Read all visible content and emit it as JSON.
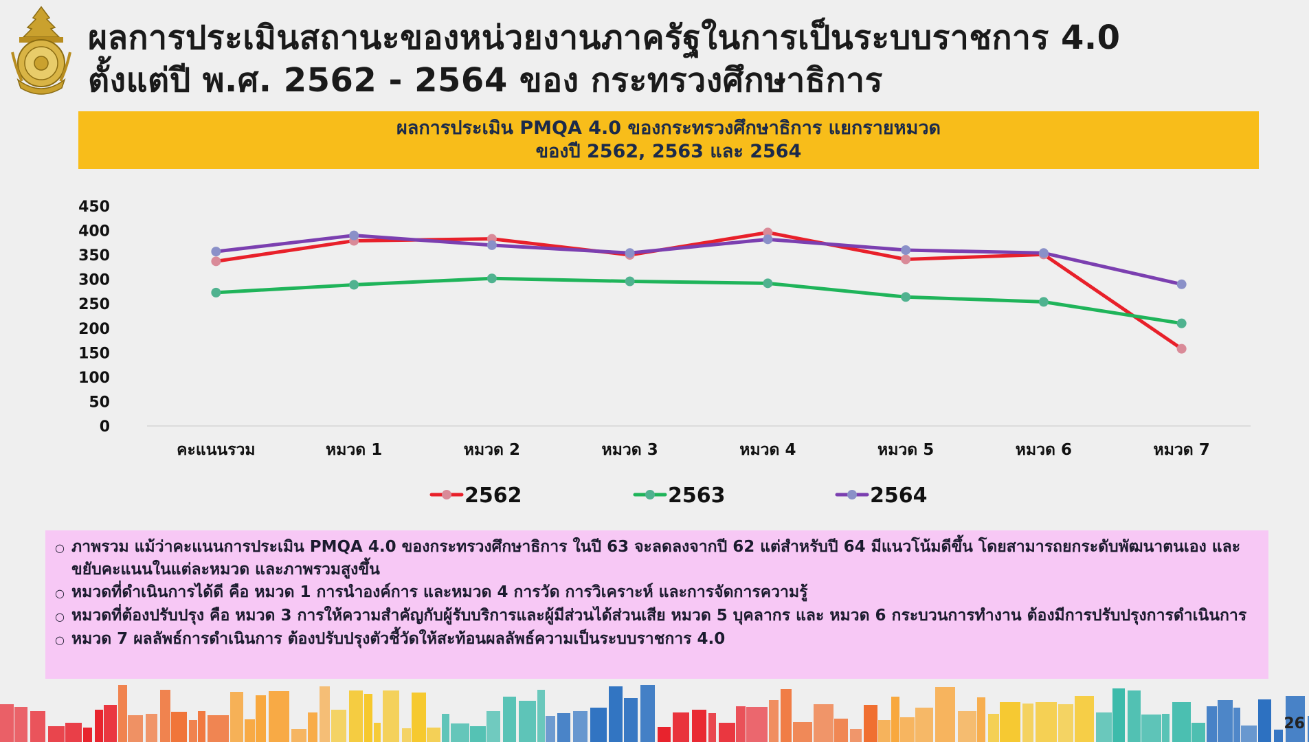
{
  "title": {
    "line1": "ผลการประเมินสถานะของหน่วยงานภาครัฐในการเป็นระบบราชการ 4.0",
    "line2": "ตั้งแต่ปี พ.ศ. 2562 - 2564 ของ กระทรวงศึกษาธิการ"
  },
  "banner": {
    "line1": "ผลการประเมิน PMQA 4.0 ของกระทรวงศึกษาธิการ แยกรายหมวด",
    "line2": "ของปี 2562, 2563 และ 2564"
  },
  "chart_data": {
    "type": "line",
    "categories": [
      "คะแนนรวม",
      "หมวด 1",
      "หมวด 2",
      "หมวด 3",
      "หมวด 4",
      "หมวด 5",
      "หมวด 6",
      "หมวด 7"
    ],
    "series": [
      {
        "name": "2562",
        "color": "#e8202a",
        "marker": "#d98a98",
        "values": [
          337,
          379,
          383,
          350,
          396,
          341,
          351,
          158
        ]
      },
      {
        "name": "2563",
        "color": "#1fb45a",
        "marker": "#4fb28f",
        "values": [
          273,
          289,
          302,
          296,
          292,
          264,
          254,
          210
        ]
      },
      {
        "name": "2564",
        "color": "#7b3fb0",
        "marker": "#8a90c8",
        "values": [
          357,
          390,
          370,
          354,
          382,
          360,
          354,
          290
        ]
      }
    ],
    "yticks": [
      0,
      50,
      100,
      150,
      200,
      250,
      300,
      350,
      400,
      450
    ],
    "ylim": [
      0,
      450
    ],
    "legend_position": "bottom-center",
    "grid": false,
    "title": "",
    "xlabel": "",
    "ylabel": ""
  },
  "notes": [
    "ภาพรวม แม้ว่าคะแนนการประเมิน PMQA 4.0 ของกระทรวงศึกษาธิการ ในปี 63 จะลดลงจากปี 62 แต่สำหรับปี 64 มีแนวโน้มดีขึ้น โดยสามารถยกระดับพัฒนาตนเอง และขยับคะแนนในแต่ละหมวด และภาพรวมสูงขึ้น",
    "หมวดที่ดำเนินการได้ดี คือ หมวด 1 การนำองค์การ และหมวด 4 การวัด การวิเคราะห์ และการจัดการความรู้",
    "หมวดที่ต้องปรับปรุง คือ หมวด 3 การให้ความสำคัญกับผู้รับบริการและผู้มีส่วนได้ส่วนเสีย หมวด 5 บุคลากร และ หมวด 6 กระบวนการทำงาน ต้องมีการปรับปรุงการดำเนินการ",
    "หมวด 7 ผลลัพธ์การดำเนินการ ต้องปรับปรุงตัวชี้วัดให้สะท้อนผลลัพธ์ความเป็นระบบราชการ 4.0"
  ],
  "page_number": "26",
  "colors": {
    "banner": "#f8bd1a",
    "notes_background": "#f7c8f5",
    "skyline": [
      "#e8202a",
      "#f06a2a",
      "#f8a334",
      "#f6c624",
      "#2bb5a4",
      "#2a6fc0"
    ]
  }
}
